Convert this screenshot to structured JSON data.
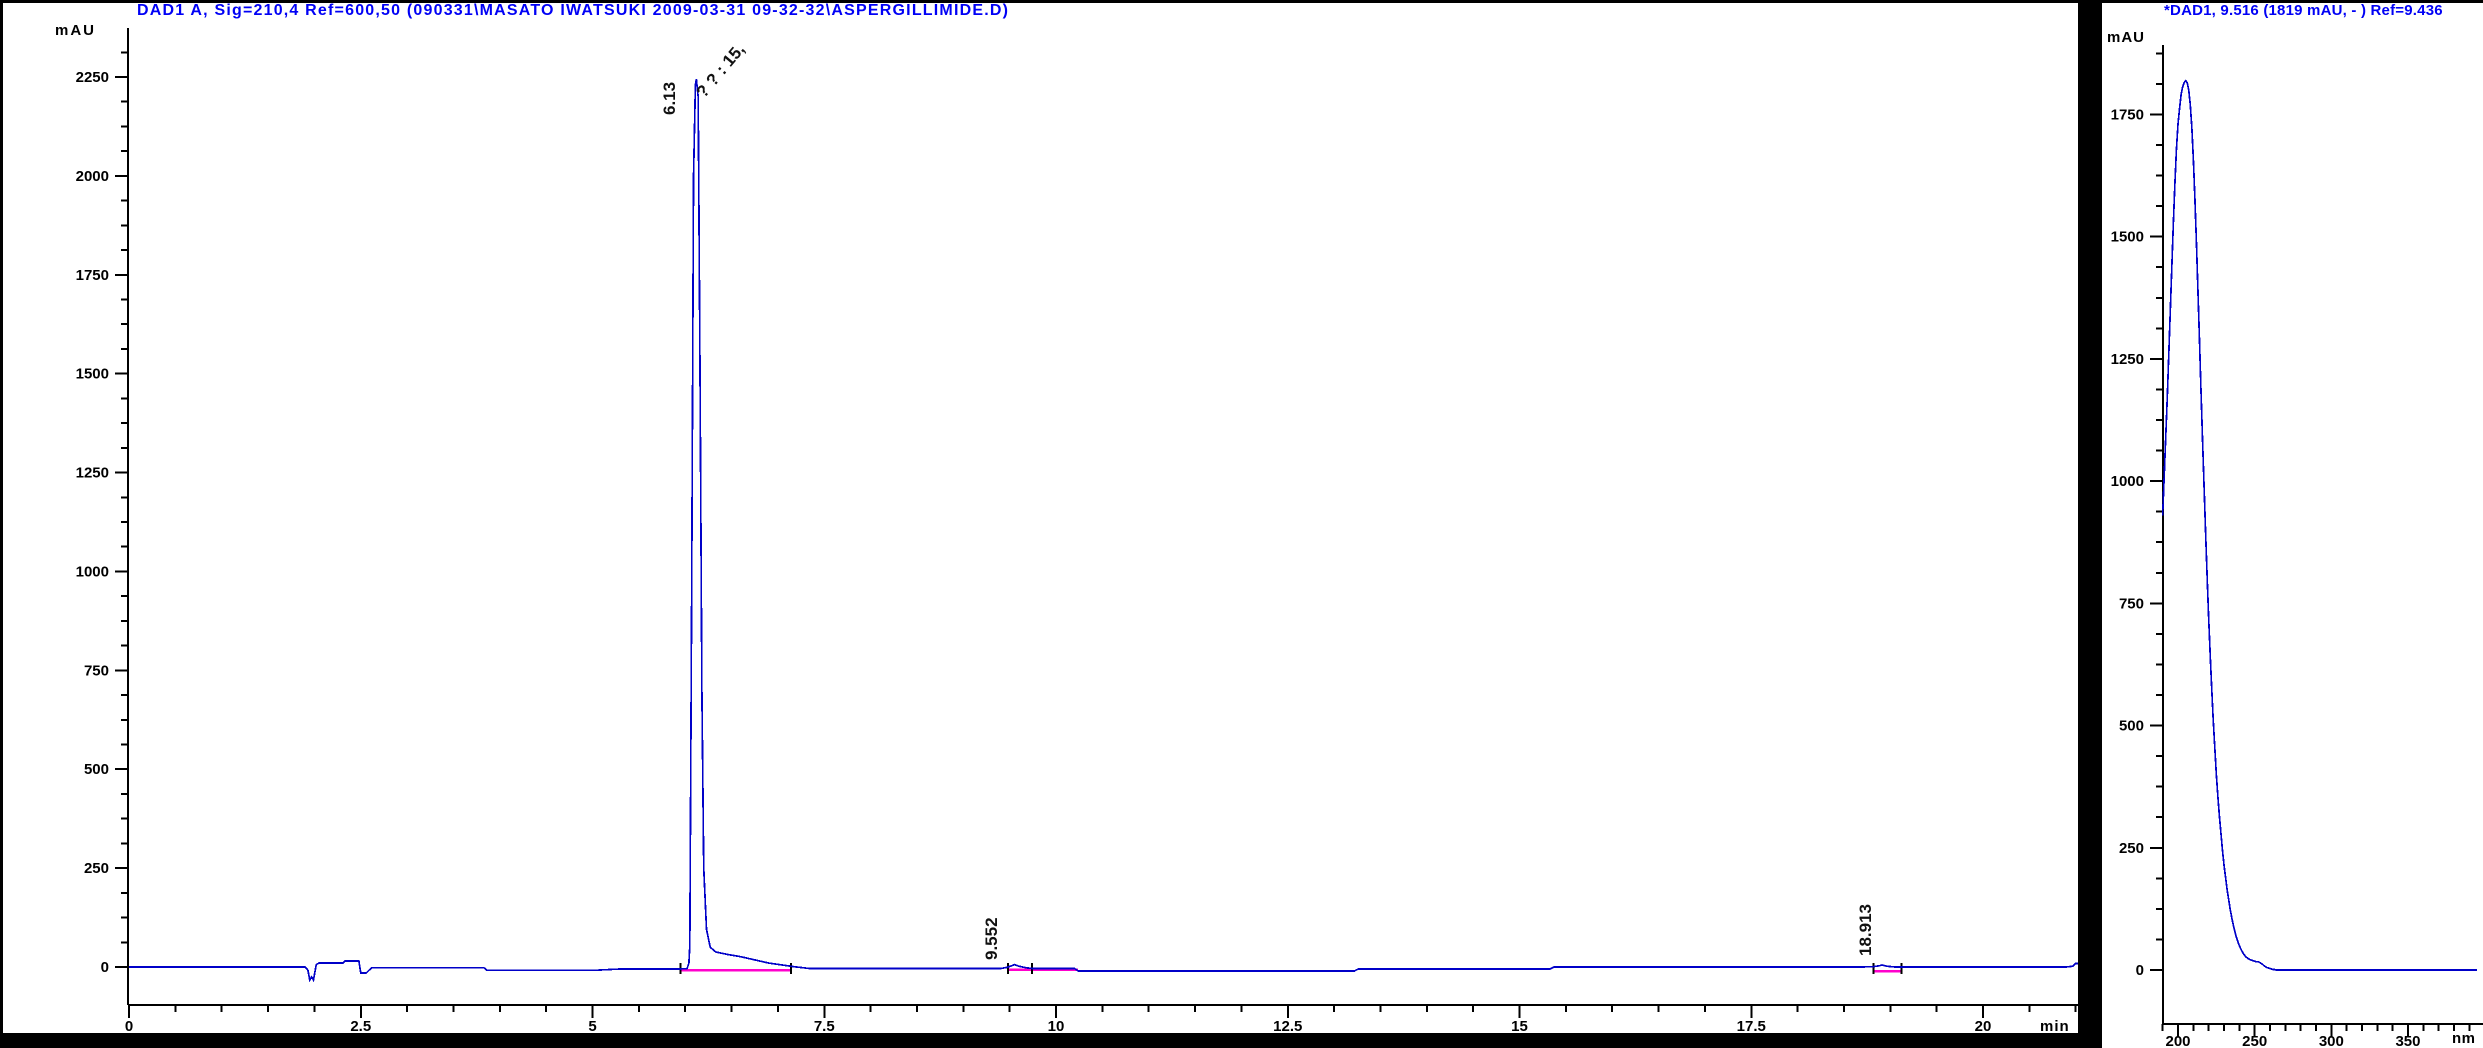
{
  "main_chart": {
    "title": "DAD1 A, Sig=210,4 Ref=600,50 (090331\\MASATO IWATSUKI 2009-03-31 09-32-32\\ASPERGILLIMIDE.D)",
    "y_unit": "mAU",
    "x_unit": "min",
    "peaks": [
      {
        "label": "6.13",
        "rt": 6.13
      },
      {
        "label": "9.552",
        "rt": 9.552
      },
      {
        "label": "18.913",
        "rt": 18.913
      }
    ],
    "annotation": "? ? : 15,"
  },
  "spectrum_panel": {
    "title": "*DAD1, 9.516 (1819 mAU, - ) Ref=9.436",
    "y_unit": "mAU",
    "x_unit": "nm"
  },
  "colors": {
    "title_blue": "#0000f5",
    "trace_blue": "#0000c8",
    "integration_magenta": "#ff00cc",
    "axis_black": "#000000"
  },
  "chart_data": [
    {
      "type": "line",
      "id": "chromatogram",
      "title": "DAD1 A, Sig=210,4 Ref=600,50",
      "xlabel": "min",
      "ylabel": "mAU",
      "xlim": [
        0,
        21.2
      ],
      "ylim": [
        -60,
        2350
      ],
      "x_ticks": [
        0,
        2.5,
        5,
        7.5,
        10,
        12.5,
        15,
        17.5,
        20
      ],
      "y_ticks": [
        0,
        250,
        500,
        750,
        1000,
        1250,
        1500,
        1750,
        2000,
        2250
      ],
      "x_minor_step": 0.5,
      "y_minor_step": 62.5,
      "grid": false,
      "series": [
        {
          "name": "DAD1 A",
          "points": [
            [
              0,
              0
            ],
            [
              1.9,
              0
            ],
            [
              1.93,
              -8
            ],
            [
              1.95,
              -33
            ],
            [
              1.97,
              -25
            ],
            [
              1.99,
              -33
            ],
            [
              2.02,
              6
            ],
            [
              2.05,
              10
            ],
            [
              2.31,
              10
            ],
            [
              2.33,
              15
            ],
            [
              2.48,
              15
            ],
            [
              2.5,
              -15
            ],
            [
              2.56,
              -15
            ],
            [
              2.59,
              -8
            ],
            [
              2.62,
              -2
            ],
            [
              3.2,
              -2
            ],
            [
              3.83,
              -2
            ],
            [
              3.86,
              -8
            ],
            [
              4.6,
              -8
            ],
            [
              5.05,
              -8
            ],
            [
              5.3,
              -5
            ],
            [
              5.95,
              -5
            ],
            [
              6.02,
              -4
            ],
            [
              6.04,
              10
            ],
            [
              6.05,
              55
            ],
            [
              6.07,
              950
            ],
            [
              6.09,
              2000
            ],
            [
              6.11,
              2230
            ],
            [
              6.12,
              2245
            ],
            [
              6.14,
              2200
            ],
            [
              6.16,
              1500
            ],
            [
              6.18,
              700
            ],
            [
              6.2,
              250
            ],
            [
              6.23,
              95
            ],
            [
              6.27,
              50
            ],
            [
              6.33,
              38
            ],
            [
              6.45,
              32
            ],
            [
              6.6,
              26
            ],
            [
              6.75,
              18
            ],
            [
              6.9,
              10
            ],
            [
              7.05,
              5
            ],
            [
              7.2,
              0
            ],
            [
              7.35,
              -4
            ],
            [
              8.0,
              -4
            ],
            [
              9.0,
              -4
            ],
            [
              9.4,
              -4
            ],
            [
              9.47,
              -1
            ],
            [
              9.52,
              3
            ],
            [
              9.55,
              6
            ],
            [
              9.6,
              2
            ],
            [
              9.68,
              -2
            ],
            [
              9.75,
              -4
            ],
            [
              10.2,
              -4
            ],
            [
              10.24,
              -10
            ],
            [
              11.5,
              -10
            ],
            [
              13.22,
              -10
            ],
            [
              13.26,
              -5
            ],
            [
              15.33,
              -5
            ],
            [
              15.37,
              0
            ],
            [
              17.0,
              0
            ],
            [
              18.7,
              0
            ],
            [
              18.82,
              1
            ],
            [
              18.88,
              3
            ],
            [
              18.91,
              5
            ],
            [
              18.96,
              2
            ],
            [
              19.05,
              0
            ],
            [
              20.4,
              0
            ],
            [
              20.9,
              0
            ],
            [
              20.97,
              2
            ],
            [
              21.0,
              9
            ],
            [
              21.04,
              9
            ]
          ]
        }
      ],
      "integration_segments": [
        {
          "t1": 5.95,
          "t2": 7.14,
          "level": -8
        },
        {
          "t1": 9.48,
          "t2": 10.24,
          "level": -7
        },
        {
          "t1": 18.82,
          "t2": 19.12,
          "level": -11
        }
      ],
      "integration_ticks": [
        5.95,
        7.14,
        9.48,
        9.74,
        18.82,
        19.12
      ],
      "labeled_peaks": [
        {
          "rt": 6.13,
          "height_mau": 2245
        },
        {
          "rt": 9.552,
          "height_mau": 6
        },
        {
          "rt": 18.913,
          "height_mau": 5
        }
      ]
    },
    {
      "type": "line",
      "id": "uv_spectrum",
      "title": "*DAD1, 9.516 (1819 mAU, - ) Ref=9.436",
      "xlabel": "nm",
      "ylabel": "mAU",
      "xlim": [
        190,
        399
      ],
      "ylim": [
        -150,
        1900
      ],
      "x_ticks": [
        200,
        250,
        300,
        350
      ],
      "y_ticks": [
        0,
        250,
        500,
        750,
        1000,
        1250,
        1500,
        1750
      ],
      "x_minor_step": 10,
      "y_minor_step": 62.5,
      "grid": false,
      "peak_max": {
        "nm": 205,
        "mau": 1819
      },
      "series": [
        {
          "name": "UV spectrum at 9.516 min",
          "points": [
            [
              190,
              930
            ],
            [
              191,
              1010
            ],
            [
              192,
              1090
            ],
            [
              193,
              1170
            ],
            [
              194,
              1260
            ],
            [
              195,
              1350
            ],
            [
              196,
              1440
            ],
            [
              197,
              1530
            ],
            [
              198,
              1610
            ],
            [
              199,
              1680
            ],
            [
              200,
              1730
            ],
            [
              201,
              1762
            ],
            [
              202,
              1790
            ],
            [
              203,
              1806
            ],
            [
              204,
              1815
            ],
            [
              205,
              1819
            ],
            [
              206,
              1815
            ],
            [
              207,
              1800
            ],
            [
              208,
              1770
            ],
            [
              209,
              1725
            ],
            [
              210,
              1660
            ],
            [
              211,
              1580
            ],
            [
              212,
              1490
            ],
            [
              213,
              1390
            ],
            [
              214,
              1290
            ],
            [
              215,
              1185
            ],
            [
              216,
              1085
            ],
            [
              217,
              990
            ],
            [
              218,
              895
            ],
            [
              219,
              805
            ],
            [
              220,
              720
            ],
            [
              221,
              645
            ],
            [
              222,
              575
            ],
            [
              223,
              510
            ],
            [
              224,
              455
            ],
            [
              225,
              400
            ],
            [
              226,
              355
            ],
            [
              227,
              315
            ],
            [
              228,
              280
            ],
            [
              229,
              245
            ],
            [
              230,
              215
            ],
            [
              231,
              190
            ],
            [
              232,
              165
            ],
            [
              233,
              145
            ],
            [
              234,
              125
            ],
            [
              235,
              108
            ],
            [
              236,
              93
            ],
            [
              237,
              80
            ],
            [
              238,
              68
            ],
            [
              239,
              58
            ],
            [
              240,
              50
            ],
            [
              241,
              43
            ],
            [
              242,
              37
            ],
            [
              243,
              32
            ],
            [
              244,
              28
            ],
            [
              245,
              25
            ],
            [
              246,
              23
            ],
            [
              247,
              21
            ],
            [
              248,
              20
            ],
            [
              249,
              19
            ],
            [
              250,
              18
            ],
            [
              251,
              17
            ],
            [
              252,
              17
            ],
            [
              253,
              16
            ],
            [
              254,
              14
            ],
            [
              255,
              12
            ],
            [
              256,
              9
            ],
            [
              257,
              7
            ],
            [
              258,
              5
            ],
            [
              259,
              4
            ],
            [
              260,
              3
            ],
            [
              261,
              2
            ],
            [
              262,
              1
            ],
            [
              263,
              1
            ],
            [
              264,
              0
            ],
            [
              266,
              0
            ],
            [
              270,
              0
            ],
            [
              280,
              0
            ],
            [
              290,
              0
            ],
            [
              300,
              0
            ],
            [
              310,
              0
            ],
            [
              320,
              0
            ],
            [
              330,
              0
            ],
            [
              340,
              0
            ],
            [
              350,
              0
            ],
            [
              360,
              0
            ],
            [
              370,
              0
            ],
            [
              380,
              0
            ],
            [
              390,
              0
            ],
            [
              395,
              0
            ]
          ]
        }
      ]
    }
  ]
}
